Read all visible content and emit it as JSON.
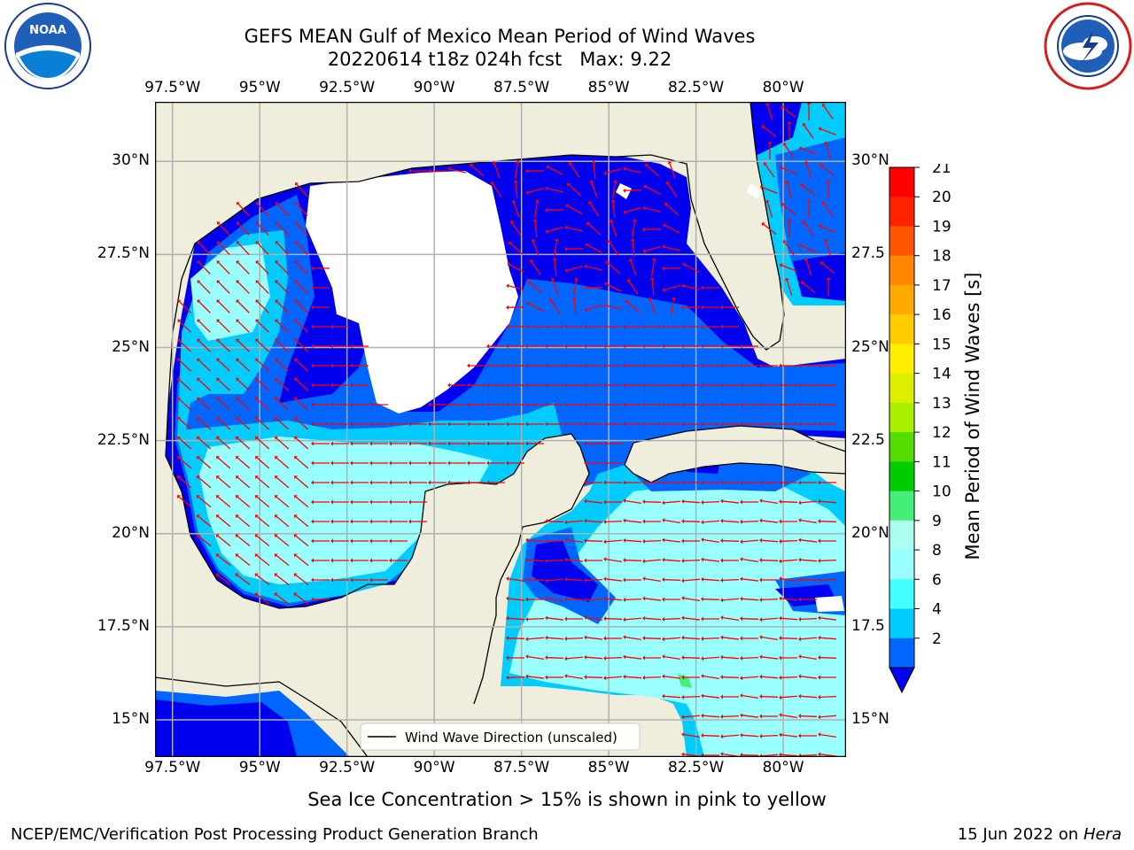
{
  "title": {
    "line1": "GEFS MEAN Gulf of Mexico Mean Period of Wind Waves",
    "line2": "20220614 t18z 024h fcst",
    "max": "Max: 9.22"
  },
  "logos": {
    "left": {
      "name": "noaa-logo",
      "text": "NOAA"
    },
    "right": {
      "name": "nws-logo"
    }
  },
  "axes": {
    "lon_labels": [
      "97.5°W",
      "95°W",
      "92.5°W",
      "90°W",
      "87.5°W",
      "85°W",
      "82.5°W",
      "80°W"
    ],
    "lat_labels_left": [
      "30°N",
      "27.5°N",
      "25°N",
      "22.5°N",
      "20°N",
      "17.5°N",
      "15°N"
    ],
    "lat_labels_right": [
      "30°N",
      "27.5",
      "25°N",
      "22.5",
      "20°N",
      "17.5",
      "15°N"
    ],
    "lon_values": [
      -97.5,
      -95,
      -92.5,
      -90,
      -87.5,
      -85,
      -82.5,
      -80
    ],
    "lat_values": [
      30,
      27.5,
      25,
      22.5,
      20,
      17.5,
      15
    ],
    "lon_range": [
      -98,
      -78.2
    ],
    "lat_range": [
      14,
      31.6
    ]
  },
  "legend": {
    "label": "Wind Wave Direction (unscaled)"
  },
  "colorbar": {
    "label": "Mean Period of Wind Waves [s]",
    "ticks": [
      "21",
      "20",
      "19",
      "18",
      "17",
      "16",
      "15",
      "14",
      "13",
      "12",
      "11",
      "10",
      "9",
      "8",
      "6",
      "4",
      "2"
    ],
    "levels": [
      2,
      4,
      6,
      8,
      9,
      10,
      11,
      12,
      13,
      14,
      15,
      16,
      17,
      18,
      19,
      20,
      21
    ],
    "colors": [
      "#0066ff",
      "#00ccff",
      "#44ffff",
      "#99ffff",
      "#aaffee",
      "#44ee77",
      "#00cc00",
      "#55dd00",
      "#aaee00",
      "#ddee00",
      "#ffee00",
      "#ffcc00",
      "#ffaa00",
      "#ff8800",
      "#ff5500",
      "#ff2200",
      "#ff0000"
    ],
    "under_color": "#0000ee"
  },
  "note": "Sea Ice Concentration > 15% is shown in pink to yellow",
  "footer": {
    "left": "NCEP/EMC/Verification Post Processing Product Generation Branch",
    "date": "15 Jun 2022 on",
    "host": "Hera"
  },
  "colors": {
    "land": "#efeddb",
    "no_data": "#ffffff",
    "arrow": "#ff0000",
    "grid": "#b0b0b0"
  }
}
